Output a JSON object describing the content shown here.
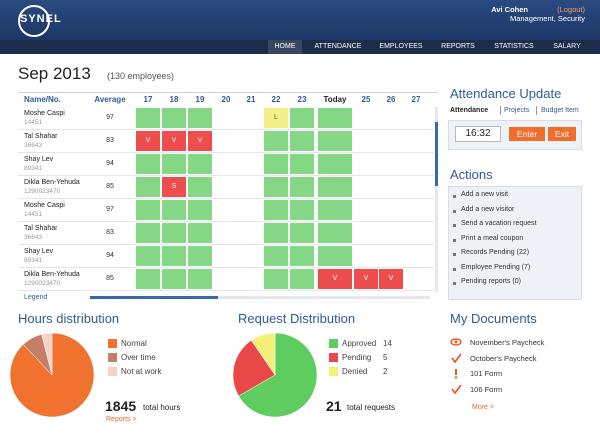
{
  "header": {
    "logo": "SYNEL",
    "user": "Avi Cohen",
    "logout": "(Logout)",
    "role": "Management, Security"
  },
  "nav": [
    "HOME",
    "ATTENDANCE",
    "EMPLOYEES",
    "REPORTS",
    "STATISTICS",
    "SALARY"
  ],
  "attendance": {
    "title": "Sep 2013",
    "subtitle": "(130 employees)",
    "columns": [
      "Name/No.",
      "Average",
      "17",
      "18",
      "19",
      "20",
      "21",
      "22",
      "23",
      "Today",
      "25",
      "26",
      "27"
    ],
    "rows": [
      {
        "name": "Moshe Caspi",
        "id": "14451",
        "average": 97,
        "cells": [
          {
            "color": "#84d784"
          },
          {
            "color": "#84d784"
          },
          {
            "color": "#84d784"
          },
          null,
          null,
          {
            "color": "#f4ef86",
            "label": "L"
          },
          {
            "color": "#84d784"
          },
          {
            "color": "#84d784"
          },
          null,
          null,
          null
        ]
      },
      {
        "name": "Tal Shahar",
        "id": "36643",
        "average": 83,
        "cells": [
          {
            "color": "#ee4d4d",
            "label": "V"
          },
          {
            "color": "#ee4d4d",
            "label": "V"
          },
          {
            "color": "#ee4d4d",
            "label": "V"
          },
          null,
          null,
          {
            "color": "#84d784"
          },
          {
            "color": "#84d784"
          },
          {
            "color": "#84d784"
          },
          null,
          null,
          null
        ]
      },
      {
        "name": "Shay Lev",
        "id": "89341",
        "average": 94,
        "cells": [
          {
            "color": "#84d784"
          },
          {
            "color": "#84d784"
          },
          {
            "color": "#84d784"
          },
          null,
          null,
          {
            "color": "#84d784"
          },
          {
            "color": "#84d784"
          },
          {
            "color": "#84d784"
          },
          null,
          null,
          null
        ]
      },
      {
        "name": "Dikla Ben-Yehuda",
        "id": "1290023470",
        "average": 85,
        "cells": [
          {
            "color": "#84d784"
          },
          {
            "color": "#ee4d4d",
            "label": "S"
          },
          {
            "color": "#84d784"
          },
          null,
          null,
          {
            "color": "#84d784"
          },
          {
            "color": "#84d784"
          },
          {
            "color": "#84d784"
          },
          null,
          null,
          null
        ]
      },
      {
        "name": "Moshe Caspi",
        "id": "14451",
        "average": 97,
        "cells": [
          {
            "color": "#84d784"
          },
          {
            "color": "#84d784"
          },
          {
            "color": "#84d784"
          },
          null,
          null,
          {
            "color": "#84d784"
          },
          {
            "color": "#84d784"
          },
          {
            "color": "#84d784"
          },
          null,
          null,
          null
        ]
      },
      {
        "name": "Tal Shahar",
        "id": "36643",
        "average": 83,
        "cells": [
          {
            "color": "#84d784"
          },
          {
            "color": "#84d784"
          },
          {
            "color": "#84d784"
          },
          null,
          null,
          {
            "color": "#84d784"
          },
          {
            "color": "#84d784"
          },
          {
            "color": "#84d784"
          },
          null,
          null,
          null
        ]
      },
      {
        "name": "Shay Lev",
        "id": "89341",
        "average": 94,
        "cells": [
          {
            "color": "#84d784"
          },
          {
            "color": "#84d784"
          },
          {
            "color": "#84d784"
          },
          null,
          null,
          {
            "color": "#84d784"
          },
          {
            "color": "#84d784"
          },
          {
            "color": "#84d784"
          },
          null,
          null,
          null
        ]
      },
      {
        "name": "Dikla Ben-Yehuda",
        "id": "1290023470",
        "average": 85,
        "cells": [
          {
            "color": "#84d784"
          },
          {
            "color": "#84d784"
          },
          {
            "color": "#84d784"
          },
          null,
          null,
          {
            "color": "#84d784"
          },
          {
            "color": "#84d784"
          },
          {
            "color": "#ee4d4d",
            "label": "V"
          },
          {
            "color": "#ee4d4d",
            "label": "V"
          },
          {
            "color": "#ee4d4d",
            "label": "V"
          },
          null
        ]
      }
    ],
    "legend": "Legend"
  },
  "update": {
    "title": "Attendance Update",
    "tabs": [
      "Attendance",
      "Projects",
      "Budget Item"
    ],
    "time": "16:32",
    "buttons": [
      "Enter",
      "Exit"
    ]
  },
  "actions": {
    "title": "Actions",
    "items": [
      "Add a new visit",
      "Add a new visitor",
      "Send a vacation request",
      "Print a meal coupon",
      "Records Pending (22)",
      "Employee Pending (7)",
      "Pending reports (0)"
    ]
  },
  "hours": {
    "title": "Hours distribution",
    "slices": [
      {
        "label": "Normal",
        "value": 88,
        "color": "#f0722e"
      },
      {
        "label": "Over time",
        "value": 8,
        "color": "#c47f66"
      },
      {
        "label": "Not at work",
        "value": 4,
        "color": "#f8d2c2"
      }
    ],
    "total": 1845,
    "total_label": "total hours",
    "link": "Reports >"
  },
  "requests": {
    "title": "Request Distribution",
    "slices": [
      {
        "label": "Approved",
        "value": 14,
        "color": "#5fcc5f"
      },
      {
        "label": "Pending",
        "value": 5,
        "color": "#e94848"
      },
      {
        "label": "Denied",
        "value": 2,
        "color": "#f2f078"
      }
    ],
    "total": 21,
    "total_label": "total requests"
  },
  "documents": {
    "title": "My Documents",
    "items": [
      "November's Paycheck",
      "October's Paycheck",
      "101 Form",
      "106 Form"
    ],
    "more": "More >"
  }
}
